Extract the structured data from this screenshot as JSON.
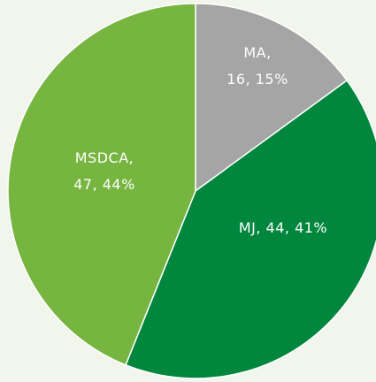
{
  "chart_data": {
    "type": "pie",
    "categories": [
      "MA",
      "MJ",
      "MSDCA"
    ],
    "values": [
      16,
      44,
      47
    ],
    "value_labels": [
      [
        "MA,",
        "16, 15%"
      ],
      [
        "MJ, 44, 41%"
      ],
      [
        "MSDCA,",
        "47, 44%"
      ]
    ],
    "colors": [
      "#a5a5a5",
      "#00873d",
      "#76b53f"
    ]
  }
}
